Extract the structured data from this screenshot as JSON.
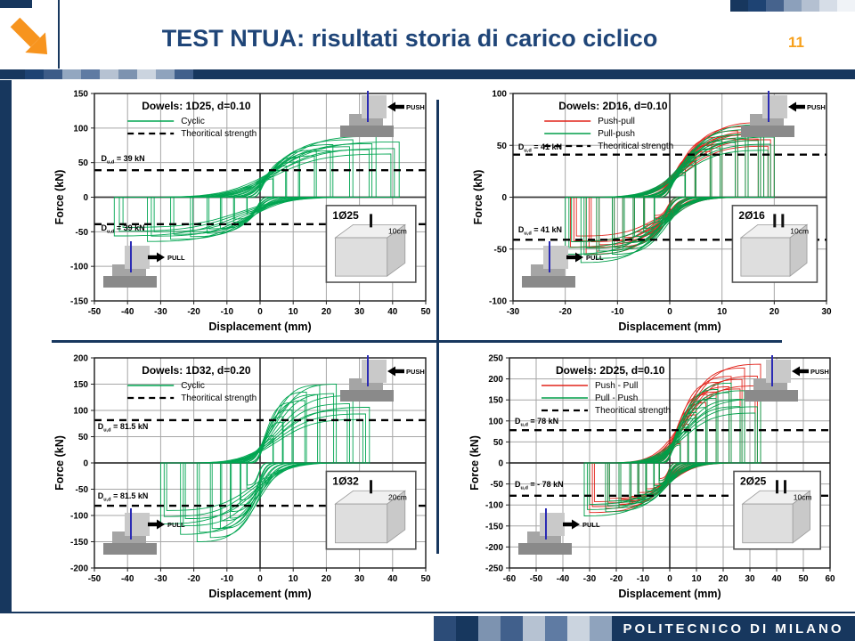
{
  "slide": {
    "title": "TEST NTUA: risultati storia di carico ciclico",
    "page_number": "11",
    "footer_text": "POLITECNICO DI MILANO"
  },
  "colors": {
    "navy": "#17375E",
    "title_blue": "#1F4578",
    "orange": "#F7A01B",
    "green": "#00A551",
    "red": "#E2231A",
    "grid": "#A6A6A6",
    "axis": "#3a3a3a",
    "frame": "#1a1a1a"
  },
  "decor": {
    "top_right_squares": [
      "#17375E",
      "#1E4373",
      "#46638D",
      "#8CA0BB",
      "#B4C0D1",
      "#D6DDE7",
      "#F0F3F7"
    ],
    "header_band_squares": [
      "#1E4373",
      "#3D5C88",
      "#93A7C0",
      "#5F7BA3",
      "#B6C2D2",
      "#7D93B0",
      "#CBD4DF",
      "#8FA3BD",
      "#41608C"
    ],
    "footer_squares": [
      "#2C4C78",
      "#17375E",
      "#7D93B0",
      "#41608C",
      "#B6C2D2",
      "#5F7BA3",
      "#CBD4DF",
      "#8FA3BD"
    ]
  },
  "chart_data": [
    {
      "id": "dowels-1d25",
      "type": "line",
      "title": "Dowels: 1D25,  d=0.10",
      "xlabel": "Displacement (mm)",
      "ylabel": "Force (kN)",
      "xlim": [
        -50,
        50
      ],
      "xstep": 10,
      "ylim": [
        -150,
        150
      ],
      "ystep": 50,
      "grid": true,
      "legend_position": "top-left",
      "legend": [
        {
          "label": "Cyclic",
          "color": "#00A551",
          "dash": false
        },
        {
          "label": "Theoritical strength",
          "color": "#000000",
          "dash": true
        }
      ],
      "theoretical_strength_kN": 39,
      "annotations": [
        {
          "text": "D[u,d] = 39 kN",
          "x": -48,
          "y": 52
        },
        {
          "text": "D[u,d] = 39 kN",
          "x": -48,
          "y": -48
        }
      ],
      "push_label": "PUSH",
      "pull_label": "PULL",
      "inset": {
        "label": "1Ø25",
        "depth": "10cm",
        "bars": 1
      },
      "series": [
        {
          "name": "Cyclic",
          "color": "#00A551",
          "cycles": [
            [
              4,
              30,
              -4,
              -24
            ],
            [
              8,
              45,
              -8,
              -36
            ],
            [
              12,
              58,
              -12,
              -45
            ],
            [
              17,
              68,
              -16,
              -52
            ],
            [
              22,
              76,
              -21,
              -57
            ],
            [
              28,
              83,
              -27,
              -61
            ],
            [
              35,
              88,
              -34,
              -64
            ],
            [
              42,
              80,
              -44,
              -56
            ]
          ]
        }
      ]
    },
    {
      "id": "dowels-2d16",
      "type": "line",
      "title": "Dowels: 2D16,  d=0.10",
      "xlabel": "Displacement (mm)",
      "ylabel": "Force (kN)",
      "xlim": [
        -30,
        30
      ],
      "xstep": 10,
      "ylim": [
        -100,
        100
      ],
      "ystep": 50,
      "grid": true,
      "legend_position": "top-left",
      "legend": [
        {
          "label": "Push-pull",
          "color": "#E2231A",
          "dash": false
        },
        {
          "label": "Pull-push",
          "color": "#009E49",
          "dash": false
        },
        {
          "label": "Theoritical strength",
          "color": "#000000",
          "dash": true
        }
      ],
      "theoretical_strength_kN": 41,
      "annotations": [
        {
          "text": "D[u,d] = 41 kN",
          "x": -29,
          "y": 46
        },
        {
          "text": "D[u,d] = 41 kN",
          "x": -29,
          "y": -34
        }
      ],
      "push_label": "PUSH",
      "pull_label": "PULL",
      "inset": {
        "label": "2Ø16",
        "depth": "10cm",
        "bars": 2
      },
      "series": [
        {
          "name": "Push-pull",
          "color": "#E2231A",
          "cycles": [
            [
              3,
              27,
              -3,
              -20
            ],
            [
              5,
              39,
              -5,
              -30
            ],
            [
              8,
              50,
              -7,
              -38
            ],
            [
              10,
              58,
              -9,
              -44
            ],
            [
              13,
              64,
              -11,
              -48
            ],
            [
              15,
              68,
              -14,
              -52
            ],
            [
              18,
              72,
              -16,
              -55
            ],
            [
              20,
              63,
              -19,
              -48
            ]
          ]
        },
        {
          "name": "Pull-push",
          "color": "#009E49",
          "cycles": [
            [
              3,
              24,
              -3,
              -24
            ],
            [
              5,
              35,
              -5,
              -34
            ],
            [
              8,
              46,
              -7,
              -43
            ],
            [
              10,
              54,
              -9,
              -50
            ],
            [
              13,
              60,
              -11,
              -55
            ],
            [
              15,
              65,
              -14,
              -59
            ],
            [
              18,
              70,
              -17,
              -63
            ],
            [
              20,
              58,
              -20,
              -55
            ]
          ]
        }
      ]
    },
    {
      "id": "dowels-1d32",
      "type": "line",
      "title": "Dowels: 1D32,  d=0.20",
      "xlabel": "Displacement (mm)",
      "ylabel": "Force (kN)",
      "xlim": [
        -50,
        50
      ],
      "xstep": 10,
      "ylim": [
        -200,
        200
      ],
      "ystep": 50,
      "grid": true,
      "legend_position": "top-left",
      "legend": [
        {
          "label": "Cyclic",
          "color": "#00A551",
          "dash": false
        },
        {
          "label": "Theoritical strength",
          "color": "#000000",
          "dash": true
        }
      ],
      "theoretical_strength_kN": 81.5,
      "annotations": [
        {
          "text": "D[u,d] = 81.5 kN",
          "x": -49,
          "y": 64
        },
        {
          "text": "D[u,d] = 81.5 kN",
          "x": -49,
          "y": -68
        }
      ],
      "push_label": "PUSH",
      "pull_label": "PULL",
      "inset": {
        "label": "1Ø32",
        "depth": "20cm",
        "bars": 1
      },
      "series": [
        {
          "name": "Cyclic",
          "color": "#00A551",
          "cycles": [
            [
              4,
              52,
              -4,
              -48
            ],
            [
              7,
              88,
              -6,
              -80
            ],
            [
              10,
              115,
              -9,
              -105
            ],
            [
              14,
              135,
              -12,
              -125
            ],
            [
              18,
              148,
              -15,
              -142
            ],
            [
              23,
              150,
              -19,
              -150
            ],
            [
              28,
              128,
              -24,
              -136
            ],
            [
              33,
              106,
              -30,
              -116
            ]
          ]
        }
      ]
    },
    {
      "id": "dowels-2d25",
      "type": "line",
      "title": "Dowels: 2D25,  d=0.10",
      "xlabel": "Displacement (mm)",
      "ylabel": "Force (kN)",
      "xlim": [
        -60,
        60
      ],
      "xstep": 10,
      "ylim": [
        -250,
        250
      ],
      "ystep": 50,
      "grid": true,
      "legend_position": "top-left",
      "legend": [
        {
          "label": "Push - Pull",
          "color": "#E2231A",
          "dash": false
        },
        {
          "label": "Pull - Push",
          "color": "#009E49",
          "dash": false
        },
        {
          "label": "Theoritical strength",
          "color": "#000000",
          "dash": true
        }
      ],
      "theoretical_strength_kN": 78,
      "annotations": [
        {
          "text": "D[u,d] = 78 kN",
          "x": -58,
          "y": 93
        },
        {
          "text": "D[u,d] = - 78 kN",
          "x": -58,
          "y": -57
        }
      ],
      "push_label": "PUSH",
      "pull_label": "PULL",
      "inset": {
        "label": "2Ø25",
        "depth": "10cm",
        "bars": 2
      },
      "series": [
        {
          "name": "Push - Pull",
          "color": "#E2231A",
          "cycles": [
            [
              4,
              52,
              -4,
              -42
            ],
            [
              7,
              92,
              -6,
              -58
            ],
            [
              10,
              130,
              -9,
              -70
            ],
            [
              14,
              163,
              -12,
              -80
            ],
            [
              18,
              192,
              -15,
              -90
            ],
            [
              23,
              206,
              -19,
              -98
            ],
            [
              28,
              226,
              -24,
              -108
            ],
            [
              34,
              235,
              -30,
              -118
            ]
          ]
        },
        {
          "name": "Pull - Push",
          "color": "#009E49",
          "cycles": [
            [
              4,
              48,
              -4,
              -48
            ],
            [
              7,
              85,
              -6,
              -62
            ],
            [
              10,
              120,
              -9,
              -76
            ],
            [
              14,
              150,
              -12,
              -86
            ],
            [
              18,
              175,
              -15,
              -96
            ],
            [
              23,
              190,
              -19,
              -106
            ],
            [
              28,
              172,
              -24,
              -116
            ],
            [
              34,
              152,
              -32,
              -126
            ]
          ]
        }
      ]
    }
  ]
}
